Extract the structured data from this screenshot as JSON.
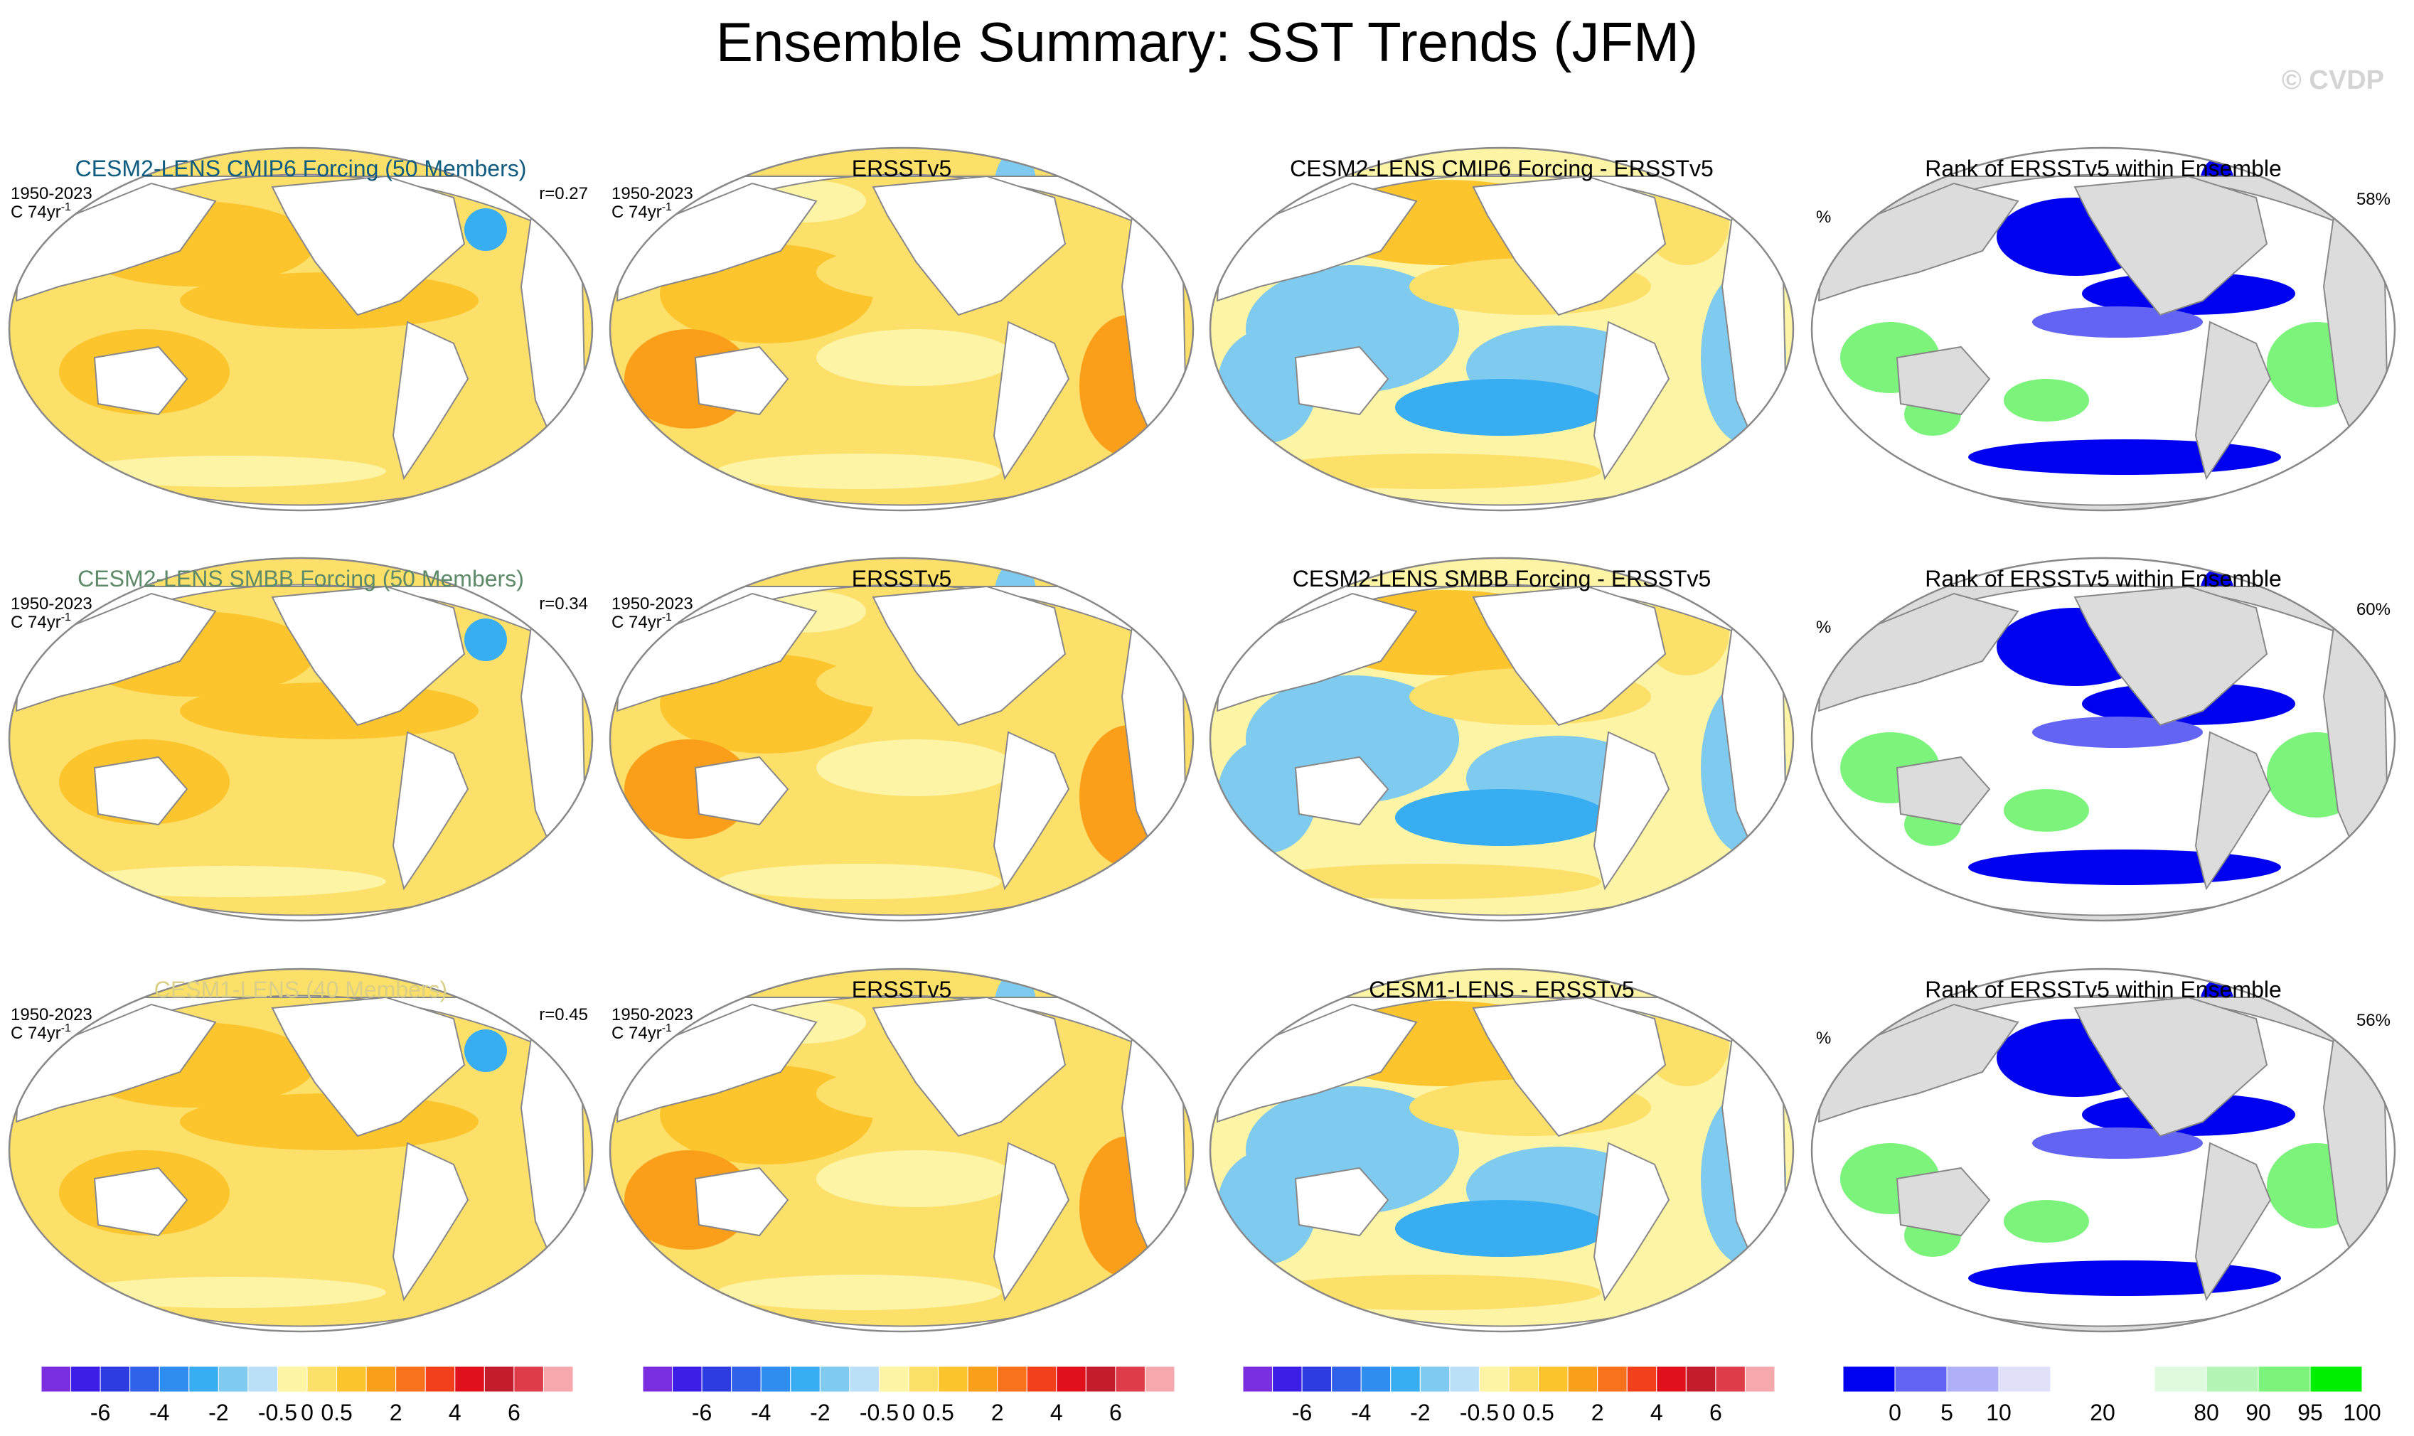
{
  "title": "Ensemble Summary: SST Trends (JFM)",
  "copyright": "© CVDP",
  "colors": {
    "land": "#ffffff",
    "rank_land": "#dcdcdc",
    "ensemble_title_colors": [
      "#0f5c80",
      "#5d8a68",
      "#d9cf86"
    ]
  },
  "panel_meta": {
    "period": "1950-2023",
    "units": "C 74yr",
    "units_sup": "-1",
    "rank_units": "%"
  },
  "rows": [
    {
      "ensemble_title": "CESM2-LENS CMIP6 Forcing (50 Members)",
      "corr": "r=0.27",
      "obs_title": "ERSSTv5",
      "diff_title": "CESM2-LENS CMIP6 Forcing - ERSSTv5",
      "rank_title": "Rank of ERSSTv5 within Ensemble",
      "rank_pct": "58%"
    },
    {
      "ensemble_title": "CESM2-LENS SMBB Forcing (50 Members)",
      "corr": "r=0.34",
      "obs_title": "ERSSTv5",
      "diff_title": "CESM2-LENS SMBB Forcing - ERSSTv5",
      "rank_title": "Rank of ERSSTv5 within Ensemble",
      "rank_pct": "60%"
    },
    {
      "ensemble_title": "CESM1-LENS (40 Members)",
      "corr": "r=0.45",
      "obs_title": "ERSSTv5",
      "diff_title": "CESM1-LENS - ERSSTv5",
      "rank_title": "Rank of ERSSTv5 within Ensemble",
      "rank_pct": "56%"
    }
  ],
  "chart_data": {
    "type": "heatmap",
    "variable": "SST trend (JFM)",
    "trend_colorbar": {
      "colors": [
        "#7b2de0",
        "#3c1ee6",
        "#2d3ce0",
        "#2f62e8",
        "#2f8df0",
        "#38adf2",
        "#7fcaef",
        "#b9e0f6",
        "#fdf4a6",
        "#fde06a",
        "#fcc52e",
        "#fb9e1a",
        "#f8711c",
        "#f3401c",
        "#e0101c",
        "#c31c2c",
        "#de3c48",
        "#f6a9ac"
      ],
      "labels": [
        "-6",
        "-4",
        "-2",
        "-0.5",
        "0",
        "0.5",
        "2",
        "4",
        "6"
      ]
    },
    "rank_colorbar": {
      "colors": [
        "#0000f0",
        "#6464f4",
        "#b0b0f8",
        "#e0e0fa",
        "#ffffff",
        "#ffffff",
        "#e0fae0",
        "#b4f4b4",
        "#7cf47c",
        "#00f000"
      ],
      "labels": [
        "0",
        "5",
        "10",
        "20",
        "80",
        "90",
        "95",
        "100"
      ]
    }
  }
}
